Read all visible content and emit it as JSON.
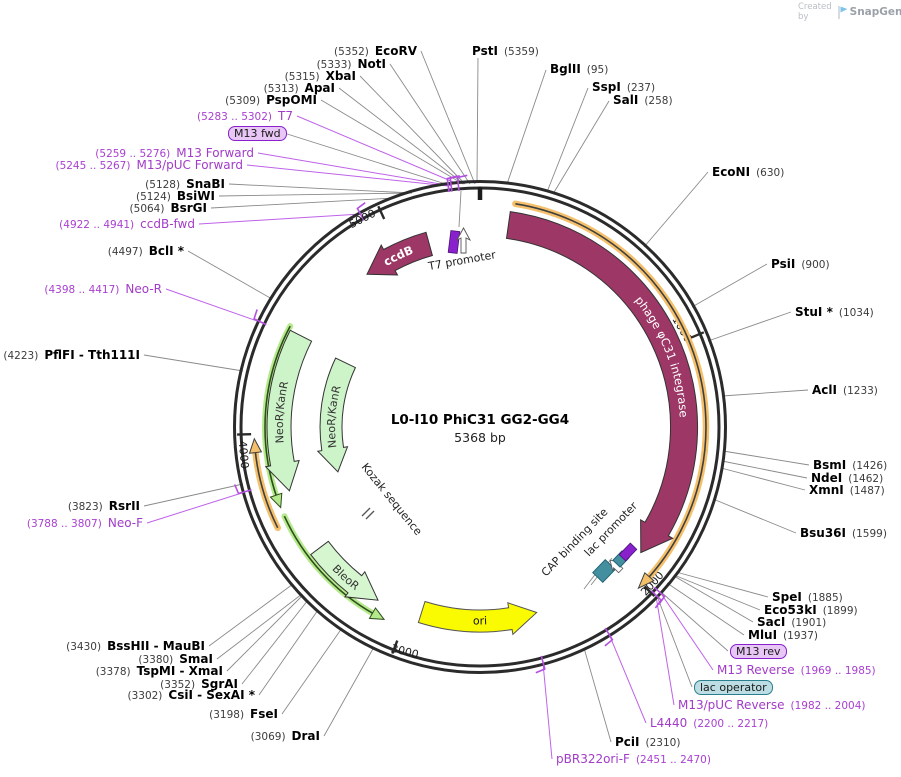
{
  "credit": {
    "prefix": "Created by",
    "brand": "SnapGene"
  },
  "plasmid": {
    "title": "L0-I10 PhiC31 GG2-GG4",
    "length": "5368 bp"
  },
  "ticks": [
    "1000",
    "2000",
    "3000",
    "4000",
    "5000"
  ],
  "features": {
    "integrase": "phage φC31 integrase",
    "ccdb": "ccdB",
    "neor_outer": "NeoR/KanR",
    "neor_inner": "NeoR/KanR",
    "bleor": "BleoR",
    "ori": "ori",
    "t7_promoter": "T7 promoter",
    "cap": "CAP binding site",
    "lac_promoter": "lac promoter",
    "kozak": "Kozak sequence"
  },
  "tags": {
    "m13_fwd": "M13 fwd",
    "m13_rev": "M13 rev",
    "lac_operator": "lac operator"
  },
  "enzymes": [
    {
      "name": "EcoRV",
      "pos": "(5352)"
    },
    {
      "name": "NotI",
      "pos": "(5333)"
    },
    {
      "name": "XbaI",
      "pos": "(5315)"
    },
    {
      "name": "ApaI",
      "pos": "(5313)"
    },
    {
      "name": "PspOMI",
      "pos": "(5309)"
    },
    {
      "name": "SnaBI",
      "pos": "(5128)"
    },
    {
      "name": "BsiWI",
      "pos": "(5124)"
    },
    {
      "name": "BsrGI",
      "pos": "(5064)"
    },
    {
      "name": "BclI *",
      "pos": "(4497)"
    },
    {
      "name": "PflFI - Tth111I",
      "pos": "(4223)"
    },
    {
      "name": "RsrII",
      "pos": "(3823)"
    },
    {
      "name": "BssHII - MauBI",
      "pos": "(3430)"
    },
    {
      "name": "SmaI",
      "pos": "(3380)"
    },
    {
      "name": "TspMI - XmaI",
      "pos": "(3378)"
    },
    {
      "name": "SgrAI",
      "pos": "(3352)"
    },
    {
      "name": "CsiI - SexAI *",
      "pos": "(3302)"
    },
    {
      "name": "FseI",
      "pos": "(3198)"
    },
    {
      "name": "DraI",
      "pos": "(3069)"
    },
    {
      "name": "PstI",
      "pos": "(5359)"
    },
    {
      "name": "BglII",
      "pos": "(95)"
    },
    {
      "name": "SspI",
      "pos": "(237)"
    },
    {
      "name": "SalI",
      "pos": "(258)"
    },
    {
      "name": "EcoNI",
      "pos": "(630)"
    },
    {
      "name": "PsiI",
      "pos": "(900)"
    },
    {
      "name": "StuI *",
      "pos": "(1034)"
    },
    {
      "name": "AclI",
      "pos": "(1233)"
    },
    {
      "name": "BsmI",
      "pos": "(1426)"
    },
    {
      "name": "NdeI",
      "pos": "(1462)"
    },
    {
      "name": "XmnI",
      "pos": "(1487)"
    },
    {
      "name": "Bsu36I",
      "pos": "(1599)"
    },
    {
      "name": "SpeI",
      "pos": "(1885)"
    },
    {
      "name": "Eco53kI",
      "pos": "(1899)"
    },
    {
      "name": "SacI",
      "pos": "(1901)"
    },
    {
      "name": "MluI",
      "pos": "(1937)"
    },
    {
      "name": "PciI",
      "pos": "(2310)"
    }
  ],
  "primers": [
    {
      "name": "T7",
      "range": "(5283 .. 5302)"
    },
    {
      "name": "M13 Forward",
      "range": "(5259 .. 5276)"
    },
    {
      "name": "M13/pUC Forward",
      "range": "(5245 .. 5267)"
    },
    {
      "name": "ccdB-fwd",
      "range": "(4922 .. 4941)"
    },
    {
      "name": "Neo-R",
      "range": "(4398 .. 4417)"
    },
    {
      "name": "Neo-F",
      "range": "(3788 .. 3807)"
    },
    {
      "name": "M13 Reverse",
      "range": "(1969 .. 1985)"
    },
    {
      "name": "M13/pUC Reverse",
      "range": "(1982 .. 2004)"
    },
    {
      "name": "L4440",
      "range": "(2200 .. 2217)"
    },
    {
      "name": "pBR322ori-F",
      "range": "(2451 .. 2470)"
    }
  ]
}
